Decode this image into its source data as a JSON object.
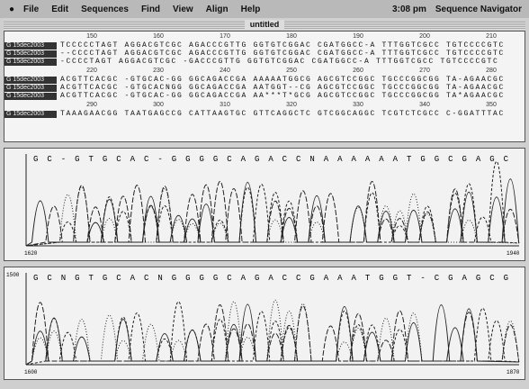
{
  "menu": {
    "items": [
      "File",
      "Edit",
      "Sequences",
      "Find",
      "View",
      "Align",
      "Help"
    ],
    "clock": "3:08 pm",
    "app": "Sequence Navigator"
  },
  "window_title": "untitled",
  "alignment": {
    "blocks": [
      {
        "ruler": [
          "150",
          "160",
          "170",
          "180",
          "190",
          "200",
          "210"
        ],
        "rows": [
          {
            "label": "G 15dec2003",
            "seq": "TCCCCCTAGT AGGACGTCGC AGACCCGTTG GGTGTCGGAC CGATGGCC-A TTTGGTCGCC TGTCCCCGTC"
          },
          {
            "label": "G 15dec2003",
            "seq": "--CCCCTAGT AGGACGTCGC AGACCCGTTG GGTGTCGGAC CGATGGCC-A TTTGGTCGCC TGTCCCCGTC"
          },
          {
            "label": "G 15dec2003",
            "seq": "-CCCCTAGT AGGACGTCGC -GACCCGTTG GGTGTCGGAC CGATGGCC-A TTTGGTCGCC TGTCCCCGTC"
          }
        ]
      },
      {
        "ruler": [
          "220",
          "230",
          "240",
          "250",
          "260",
          "270",
          "280"
        ],
        "rows": [
          {
            "label": "G 15dec2003",
            "seq": "ACGTTCACGC -GTGCAC-GG GGCAGACCGA AAAAATGGCG AGCGTCCGGC TGCCCGGCGG TA-AGAACGC"
          },
          {
            "label": "G 15dec2003",
            "seq": "ACGTTCACGC -GTGCACNGG GGCAGACCGA AATGGT--CG AGCGTCCGGC TGCCCGGCGG TA-AGAACGC"
          },
          {
            "label": "G 15dec2003",
            "seq": "ACGTTCACGC -GTGCAC-GG GGCAGACCGA AA***T*GCG AGCGTCCGGC TGCCCGGCGG TA*AGAACGC"
          }
        ]
      },
      {
        "ruler": [
          "290",
          "300",
          "310",
          "320",
          "330",
          "340",
          "350"
        ],
        "rows": [
          {
            "label": "G 15dec2003",
            "seq": "TAAAGAACGG TAATGAGCCG CATTAAGTGC GTTCAGGCTC GTCGGCAGGC TCGTCTCGCC C-GGATTTAC"
          }
        ]
      }
    ]
  },
  "chromatograms": [
    {
      "calls": [
        "G",
        "C",
        "-",
        "G",
        "T",
        "G",
        "C",
        "A",
        "C",
        "-",
        "G",
        "G",
        "G",
        "G",
        "C",
        "A",
        "G",
        "A",
        "C",
        "C",
        "N",
        "A",
        "A",
        "A",
        "A",
        "A",
        "A",
        "T",
        "G",
        "G",
        "C",
        "G",
        "A",
        "G",
        "C"
      ],
      "axis_start": "1620",
      "axis_end": "1940"
    },
    {
      "calls": [
        "G",
        "C",
        "N",
        "G",
        "T",
        "G",
        "C",
        "A",
        "C",
        "N",
        "G",
        "G",
        "G",
        "G",
        "C",
        "A",
        "G",
        "A",
        "C",
        "C",
        "G",
        "A",
        "A",
        "A",
        "T",
        "G",
        "G",
        "T",
        "-",
        "C",
        "G",
        "A",
        "G",
        "C",
        "G"
      ],
      "axis_top": "1500",
      "axis_start": "1600",
      "axis_end": "1870"
    }
  ]
}
